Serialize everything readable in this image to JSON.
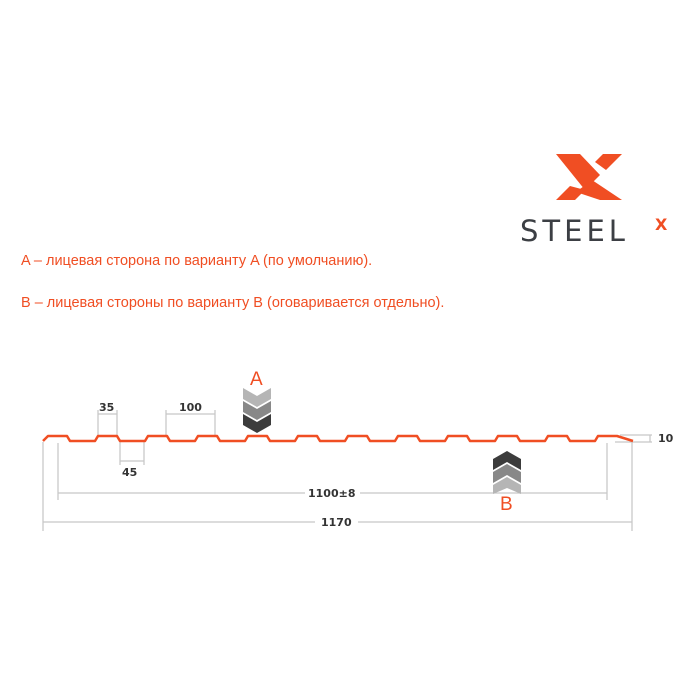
{
  "brand": {
    "name": "STEEL",
    "superscript": "X",
    "colors": {
      "orange": "#f04e23",
      "dark": "#3c3f44"
    }
  },
  "notes": [
    "A – лицевая сторона по варианту A (по умолчанию).",
    "B – лицевая стороны по варианту B (оговаривается отдельно)."
  ],
  "diagram": {
    "dimensions": {
      "top_width": "35",
      "pitch": "100",
      "bottom_width": "45",
      "height": "10",
      "useful_width": "1100±8",
      "total_width": "1170"
    },
    "side_labels": {
      "a": "A",
      "b": "B"
    },
    "profile_color": "#f04e23",
    "dimension_line_color": "#c8c8c8"
  }
}
